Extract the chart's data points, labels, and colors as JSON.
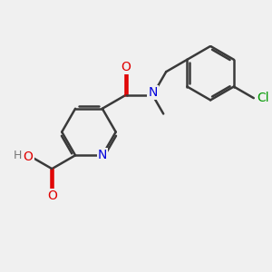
{
  "bg_color": "#f0f0f0",
  "bond_color": "#3a3a3a",
  "bond_width": 1.8,
  "atom_colors": {
    "O": "#e00000",
    "N": "#0000dd",
    "Cl": "#009900",
    "H": "#777777",
    "C": "#3a3a3a"
  },
  "font_size": 10,
  "figsize": [
    3.0,
    3.0
  ],
  "dpi": 100
}
